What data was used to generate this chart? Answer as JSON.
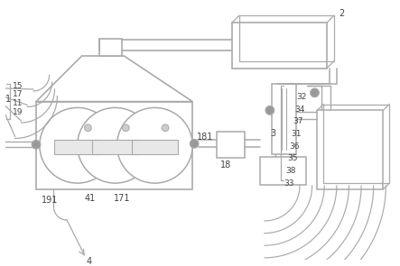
{
  "bg_color": "#ffffff",
  "line_color": "#aaaaaa",
  "line_width": 1.0,
  "font_size": 7.0,
  "font_color": "#444444"
}
